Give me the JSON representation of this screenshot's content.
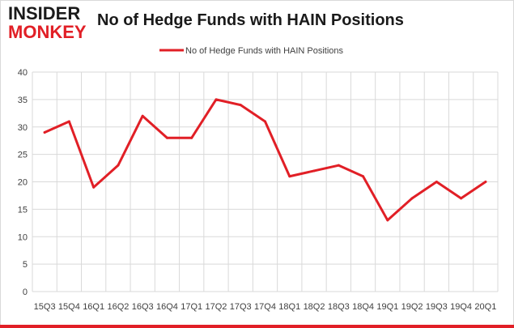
{
  "brand": {
    "line1": "INSIDER",
    "line2": "MONKEY"
  },
  "header": {
    "title": "No of Hedge Funds with HAIN Positions"
  },
  "colors": {
    "series": "#e11f26",
    "grid": "#d9d9d9",
    "axis_text": "#404040"
  },
  "chart_data": {
    "type": "line",
    "title": "No of Hedge Funds with HAIN Positions",
    "xlabel": "",
    "ylabel": "",
    "ylim": [
      0,
      40
    ],
    "yticks": [
      0,
      5,
      10,
      15,
      20,
      25,
      30,
      35,
      40
    ],
    "grid": true,
    "legend": "top-center",
    "categories": [
      "15Q3",
      "15Q4",
      "16Q1",
      "16Q2",
      "16Q3",
      "16Q4",
      "17Q1",
      "17Q2",
      "17Q3",
      "17Q4",
      "18Q1",
      "18Q2",
      "18Q3",
      "18Q4",
      "19Q1",
      "19Q2",
      "19Q3",
      "19Q4",
      "20Q1"
    ],
    "series": [
      {
        "name": "No of Hedge Funds with HAIN Positions",
        "values": [
          29,
          31,
          19,
          23,
          32,
          28,
          28,
          35,
          34,
          31,
          21,
          22,
          23,
          21,
          13,
          17,
          20,
          17,
          20
        ]
      }
    ]
  }
}
